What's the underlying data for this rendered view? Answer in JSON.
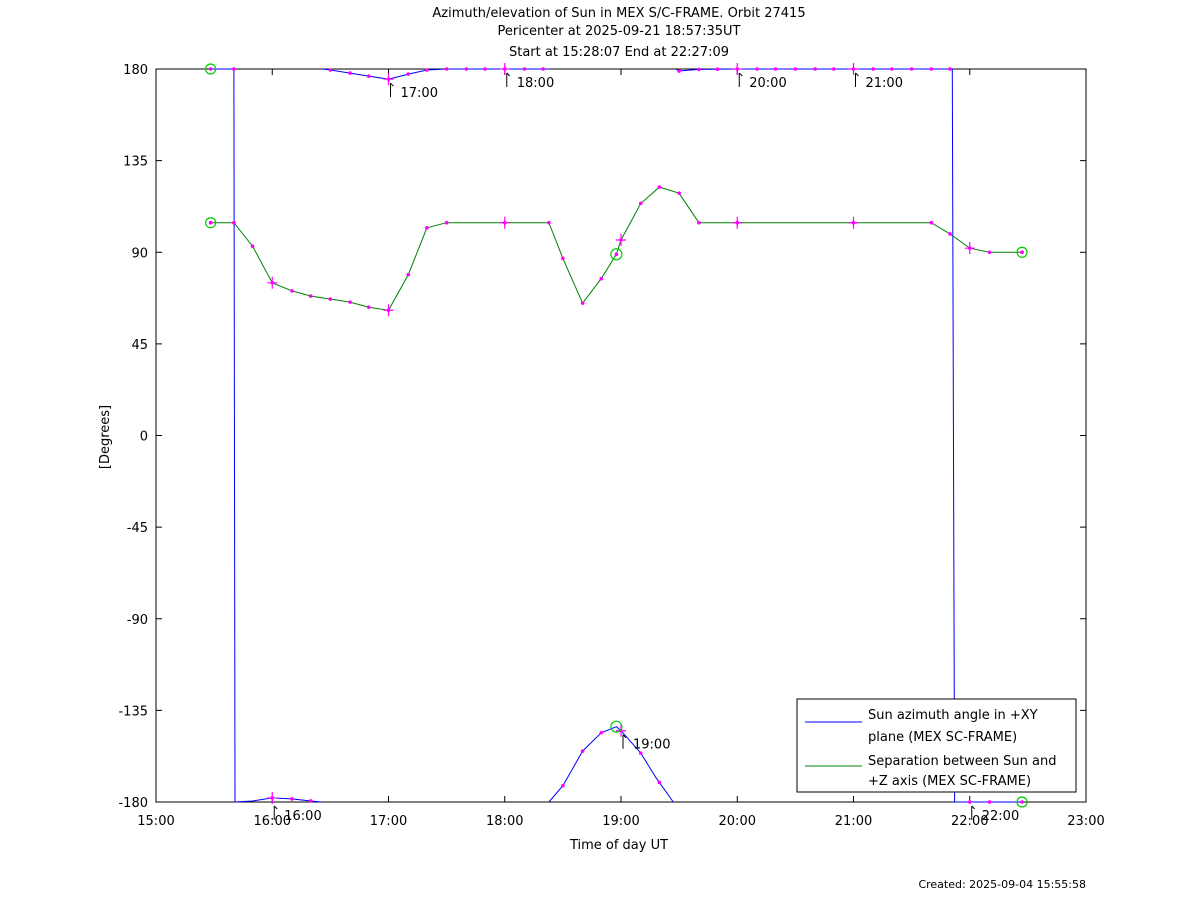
{
  "chart_data": {
    "type": "line",
    "title": [
      "Azimuth/elevation of Sun in MEX S/C-FRAME.  Orbit 27415",
      "Pericenter at 2025-09-21 18:57:35UT",
      "Start at 15:28:07 End at 22:27:09"
    ],
    "xlabel": "Time of day UT",
    "ylabel": "[Degrees]",
    "xlim": [
      15.0,
      23.0
    ],
    "ylim": [
      -180,
      180
    ],
    "x_ticks": [
      {
        "value": 15,
        "label": "15:00"
      },
      {
        "value": 16,
        "label": "16:00"
      },
      {
        "value": 17,
        "label": "17:00"
      },
      {
        "value": 18,
        "label": "18:00"
      },
      {
        "value": 19,
        "label": "19:00"
      },
      {
        "value": 20,
        "label": "20:00"
      },
      {
        "value": 21,
        "label": "21:00"
      },
      {
        "value": 22,
        "label": "22:00"
      },
      {
        "value": 23,
        "label": "23:00"
      }
    ],
    "y_ticks": [
      {
        "value": 180,
        "label": "180"
      },
      {
        "value": 135,
        "label": "135"
      },
      {
        "value": 90,
        "label": "90"
      },
      {
        "value": 45,
        "label": "45"
      },
      {
        "value": 0,
        "label": "0"
      },
      {
        "value": -45,
        "label": "-45"
      },
      {
        "value": -90,
        "label": "-90"
      },
      {
        "value": -135,
        "label": "-135"
      },
      {
        "value": -180,
        "label": "-180"
      }
    ],
    "legend_position": "bottom-right",
    "grid": false,
    "series": [
      {
        "name": "Sun azimuth angle in +XY plane (MEX SC-FRAME)",
        "legend_lines": [
          "Sun azimuth angle in +XY",
          "plane (MEX SC-FRAME)"
        ],
        "color": "#0000ff",
        "segments": [
          [
            [
              15.47,
              180
            ],
            [
              15.67,
              180
            ],
            [
              15.68,
              -180
            ]
          ],
          [
            [
              15.68,
              -180
            ],
            [
              15.83,
              -179.5
            ],
            [
              16.0,
              -178
            ],
            [
              16.17,
              -178.5
            ],
            [
              16.33,
              -179.5
            ],
            [
              16.43,
              -180
            ]
          ],
          [
            [
              16.43,
              180
            ],
            [
              16.5,
              179.5
            ],
            [
              16.67,
              178
            ],
            [
              16.83,
              176.5
            ],
            [
              17.0,
              175
            ],
            [
              17.17,
              177.5
            ],
            [
              17.33,
              179.5
            ],
            [
              17.5,
              180
            ],
            [
              18.0,
              180
            ],
            [
              18.38,
              180
            ]
          ],
          [
            [
              18.38,
              -180
            ],
            [
              18.5,
              -172
            ],
            [
              18.67,
              -155
            ],
            [
              18.83,
              -146
            ],
            [
              18.96,
              -143
            ],
            [
              19.0,
              -145
            ],
            [
              19.17,
              -156
            ],
            [
              19.3,
              -168
            ],
            [
              19.45,
              -180
            ]
          ],
          [
            [
              19.47,
              180
            ],
            [
              19.5,
              179
            ],
            [
              19.67,
              179.8
            ],
            [
              20.0,
              180
            ],
            [
              21.0,
              180
            ],
            [
              21.85,
              180
            ],
            [
              21.87,
              -180
            ]
          ],
          [
            [
              21.87,
              -180
            ],
            [
              22.0,
              -180
            ],
            [
              22.45,
              -180
            ]
          ]
        ],
        "markers": [
          15.67,
          16.0,
          16.17,
          16.33,
          16.5,
          16.67,
          16.83,
          17.0,
          17.17,
          17.33,
          17.5,
          17.67,
          17.83,
          18.0,
          18.17,
          18.33,
          18.5,
          18.67,
          18.83,
          19.0,
          19.17,
          19.33,
          19.5,
          19.67,
          19.83,
          20.0,
          20.17,
          20.33,
          20.5,
          20.67,
          20.83,
          21.0,
          21.17,
          21.33,
          21.5,
          21.67,
          21.83,
          22.0,
          22.17
        ]
      },
      {
        "name": "Separation between Sun and +Z axis (MEX SC-FRAME)",
        "legend_lines": [
          "Separation between Sun and",
          "+Z axis (MEX SC-FRAME)"
        ],
        "color": "#008000",
        "points": [
          [
            15.47,
            104.5
          ],
          [
            15.67,
            104.5
          ],
          [
            15.83,
            93
          ],
          [
            16.0,
            75
          ],
          [
            16.17,
            71
          ],
          [
            16.33,
            68.5
          ],
          [
            16.5,
            67
          ],
          [
            16.67,
            65.5
          ],
          [
            16.83,
            63
          ],
          [
            17.0,
            61.5
          ],
          [
            17.17,
            79
          ],
          [
            17.33,
            102
          ],
          [
            17.5,
            104.5
          ],
          [
            18.0,
            104.5
          ],
          [
            18.38,
            104.5
          ],
          [
            18.5,
            87
          ],
          [
            18.67,
            65
          ],
          [
            18.83,
            77
          ],
          [
            18.96,
            89
          ],
          [
            19.0,
            96
          ],
          [
            19.17,
            114
          ],
          [
            19.33,
            122
          ],
          [
            19.5,
            119
          ],
          [
            19.67,
            104.5
          ],
          [
            20.0,
            104.5
          ],
          [
            21.0,
            104.5
          ],
          [
            21.67,
            104.5
          ],
          [
            21.83,
            99
          ],
          [
            22.0,
            92
          ],
          [
            22.17,
            90
          ],
          [
            22.45,
            90
          ]
        ]
      }
    ],
    "start_markers": [
      {
        "x": 15.47,
        "y": 180
      },
      {
        "x": 15.47,
        "y": 104.5
      }
    ],
    "end_markers": [
      {
        "x": 22.45,
        "y": 90
      },
      {
        "x": 22.45,
        "y": -180
      }
    ],
    "pericenter_markers": [
      {
        "x": 18.96,
        "y": 89
      },
      {
        "x": 18.96,
        "y": -143
      }
    ],
    "hour_annotations": [
      {
        "x": 16.0,
        "y": -180,
        "label": "16:00"
      },
      {
        "x": 17.0,
        "y": 175,
        "label": "17:00"
      },
      {
        "x": 18.0,
        "y": 180,
        "label": "18:00"
      },
      {
        "x": 19.0,
        "y": -145,
        "label": "19:00"
      },
      {
        "x": 20.0,
        "y": 180,
        "label": "20:00"
      },
      {
        "x": 21.0,
        "y": 180,
        "label": "21:00"
      },
      {
        "x": 22.0,
        "y": -180,
        "label": "22:00"
      }
    ],
    "hour_crosses": [
      {
        "x": 16.0,
        "y": 75
      },
      {
        "x": 17.0,
        "y": 61.5
      },
      {
        "x": 18.0,
        "y": 104.5
      },
      {
        "x": 19.0,
        "y": 96
      },
      {
        "x": 20.0,
        "y": 104.5
      },
      {
        "x": 21.0,
        "y": 104.5
      },
      {
        "x": 22.0,
        "y": 92
      },
      {
        "x": 16.0,
        "y": -178
      },
      {
        "x": 17.0,
        "y": 175
      },
      {
        "x": 18.0,
        "y": 180
      },
      {
        "x": 19.0,
        "y": -145
      },
      {
        "x": 20.0,
        "y": 180
      },
      {
        "x": 21.0,
        "y": 180
      }
    ]
  },
  "footer": {
    "created": "Created: 2025-09-04 15:55:58"
  },
  "colors": {
    "marker": "#ff00ff",
    "start_end_circle": "#00cc00",
    "axes": "#000000"
  }
}
